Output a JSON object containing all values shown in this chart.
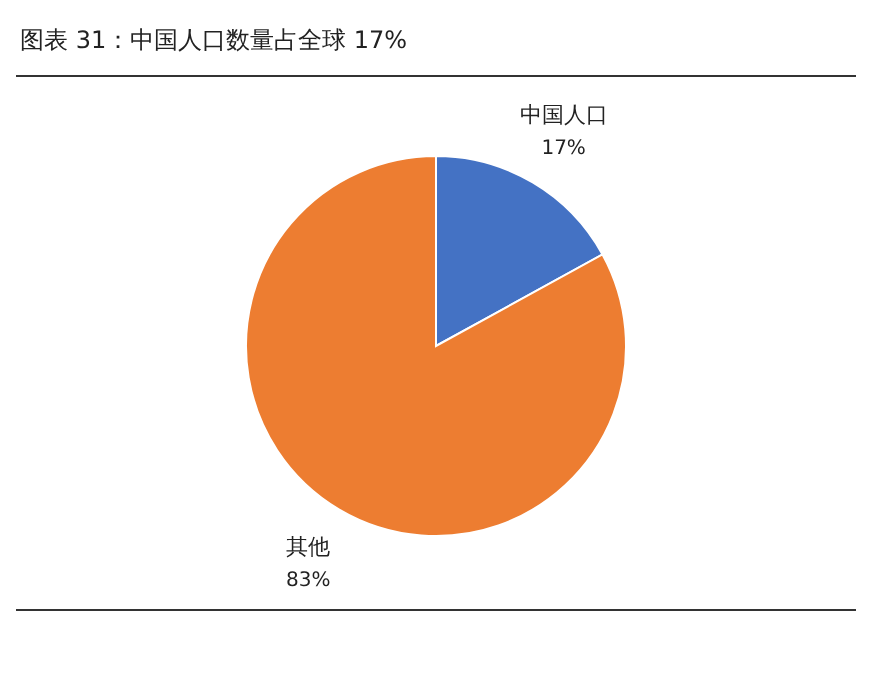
{
  "chart_data": {
    "type": "pie",
    "title": "图表 31：中国人口数量占全球 17%",
    "categories": [
      "中国人口",
      "其他"
    ],
    "values": [
      17,
      83
    ],
    "colors": [
      "#4472c4",
      "#ed7d31"
    ],
    "value_labels": [
      "17%",
      "83%"
    ]
  }
}
